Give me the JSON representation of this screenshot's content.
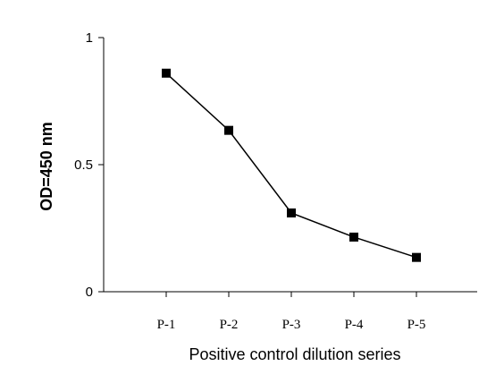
{
  "chart_data": {
    "type": "line",
    "categories": [
      "P-1",
      "P-2",
      "P-3",
      "P-4",
      "P-5"
    ],
    "series": [
      {
        "values": [
          0.86,
          0.635,
          0.31,
          0.215,
          0.135
        ]
      }
    ],
    "xlabel": "Positive control dilution series",
    "ylabel": "OD=450 nm",
    "ylim": [
      0,
      1
    ],
    "yticks": [
      {
        "value": 0,
        "label": "0"
      },
      {
        "value": 0.5,
        "label": "0.5"
      },
      {
        "value": 1,
        "label": "1"
      }
    ],
    "grid": false,
    "legend": "none",
    "marker": "square",
    "line_color": "#000000",
    "marker_color": "#000000"
  }
}
